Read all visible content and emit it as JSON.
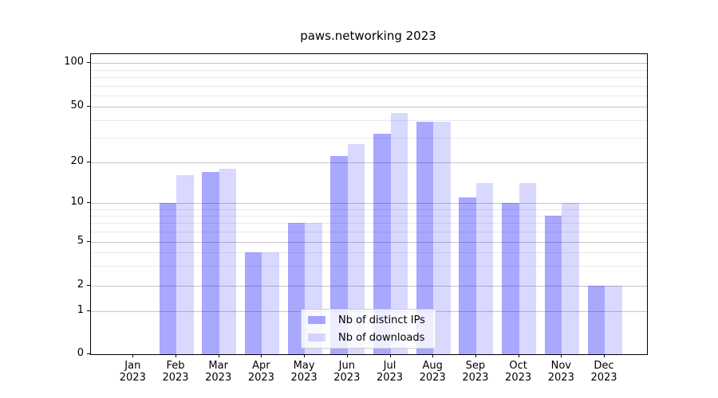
{
  "title": "paws.networking 2023",
  "legend": {
    "items": [
      {
        "label": "Nb of distinct IPs",
        "color": "rgba(0,0,255,0.34)"
      },
      {
        "label": "Nb of downloads",
        "color": "rgba(0,0,255,0.15)"
      }
    ],
    "position": "lower center"
  },
  "colors": {
    "bar_distinct_ips": "rgba(0,0,255,0.34)",
    "bar_downloads": "rgba(0,0,255,0.15)",
    "grid_major": "#c6c6c6",
    "grid_minor": "#e9e9e9",
    "axis": "#000000"
  },
  "chart_data": {
    "type": "bar",
    "title": "paws.networking 2023",
    "categories": [
      "Jan 2023",
      "Feb 2023",
      "Mar 2023",
      "Apr 2023",
      "May 2023",
      "Jun 2023",
      "Jul 2023",
      "Aug 2023",
      "Sep 2023",
      "Oct 2023",
      "Nov 2023",
      "Dec 2023"
    ],
    "series": [
      {
        "name": "Nb of distinct IPs",
        "values": [
          0,
          10,
          17,
          4,
          7,
          22,
          32,
          39,
          11,
          10,
          8,
          2
        ]
      },
      {
        "name": "Nb of downloads",
        "values": [
          0,
          16,
          18,
          4,
          7,
          27,
          45,
          39,
          14,
          14,
          10,
          2
        ]
      }
    ],
    "xlabel": "",
    "ylabel": "",
    "yscale": "symlog",
    "ylim": [
      0,
      116
    ],
    "y_major_ticks": [
      100,
      50,
      20,
      10,
      5,
      2,
      1,
      0
    ],
    "y_minor_ticks": [
      90,
      80,
      70,
      60,
      50,
      40,
      30,
      9,
      8,
      7,
      6,
      5,
      4,
      3
    ],
    "grid": "both",
    "legend_position": "lower center"
  }
}
